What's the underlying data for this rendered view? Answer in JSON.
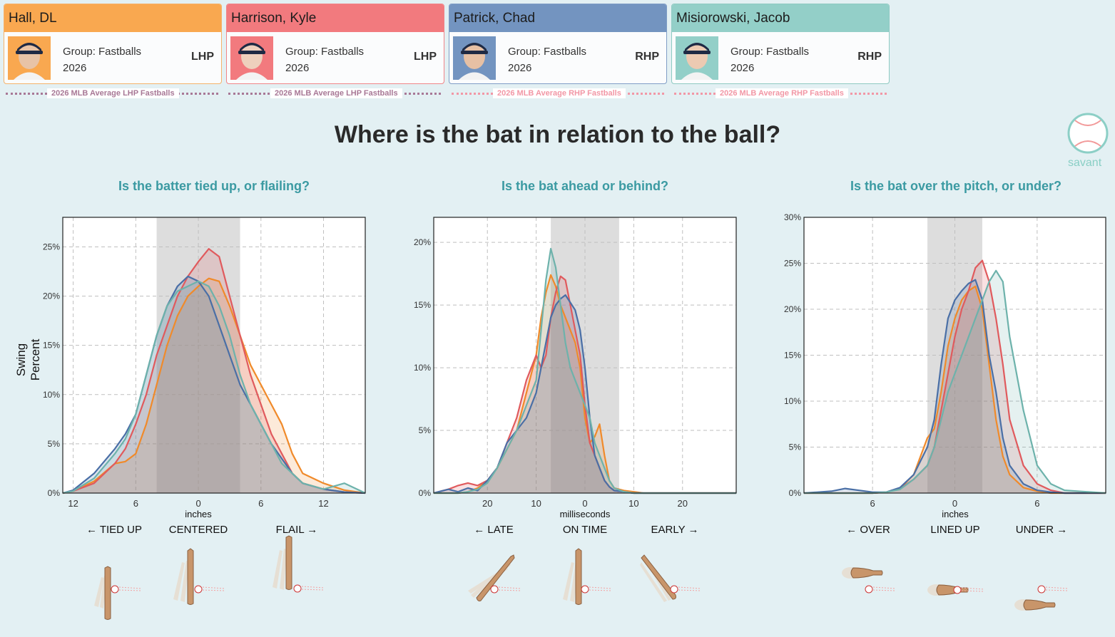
{
  "players": [
    {
      "name": "Hall, DL",
      "group": "Group: Fastballs",
      "year": "2026",
      "hand": "LHP",
      "color": "#f9a850",
      "border": "#f5b26a",
      "avg_label": "2026 MLB Average LHP Fastballs",
      "avg_color": "#a87896"
    },
    {
      "name": "Harrison, Kyle",
      "group": "Group: Fastballs",
      "year": "2026",
      "hand": "LHP",
      "color": "#f27a7e",
      "border": "#f08487",
      "avg_label": "2026 MLB Average LHP Fastballs",
      "avg_color": "#a87896"
    },
    {
      "name": "Patrick, Chad",
      "group": "Group: Fastballs",
      "year": "2026",
      "hand": "RHP",
      "color": "#7394c0",
      "border": "#7f9dc6",
      "avg_label": "2026 MLB Average RHP Fastballs",
      "avg_color": "#f297a5"
    },
    {
      "name": "Misiorowski, Jacob",
      "group": "Group: Fastballs",
      "year": "2026",
      "hand": "RHP",
      "color": "#93cfc8",
      "border": "#8ecac2",
      "avg_label": "2026 MLB Average RHP Fastballs",
      "avg_color": "#f297a5"
    }
  ],
  "title": "Where is the bat in relation to the ball?",
  "savant": "savant",
  "ylabel": "Swing Percent",
  "charts": [
    {
      "subtitle": "Is the batter tied up, or flailing?",
      "xunit": "inches",
      "zones": [
        "← TIED UP",
        "CENTERED",
        "FLAIL →"
      ]
    },
    {
      "subtitle": "Is the bat ahead or behind?",
      "xunit": "milliseconds",
      "zones": [
        "← LATE",
        "ON TIME",
        "EARLY →"
      ]
    },
    {
      "subtitle": "Is the bat over the pitch, or under?",
      "xunit": "inches",
      "zones": [
        "← OVER",
        "LINED UP",
        "UNDER →"
      ]
    }
  ],
  "chart_data": [
    {
      "type": "area",
      "title": "Is the batter tied up, or flailing?",
      "xlabel": "inches",
      "ylabel": "Swing Percent",
      "xlim": [
        -13,
        16
      ],
      "ylim": [
        0,
        28
      ],
      "xticks": [
        -12,
        -6,
        0,
        6,
        12
      ],
      "xtick_labels": [
        "12",
        "6",
        "0",
        "6",
        "12"
      ],
      "yticks": [
        0,
        5,
        10,
        15,
        20,
        25
      ],
      "ytick_labels": [
        "0%",
        "5%",
        "10%",
        "15%",
        "20%",
        "25%"
      ],
      "shaded_band": [
        -4,
        4
      ],
      "x": [
        -13,
        -12,
        -10,
        -8,
        -7,
        -6,
        -5,
        -4,
        -3,
        -2,
        -1,
        0,
        1,
        2,
        3,
        4,
        5,
        6,
        7,
        8,
        9,
        10,
        12,
        14,
        16
      ],
      "series": [
        {
          "name": "Hall, DL",
          "color": "#f08a2a",
          "values": [
            0,
            0.2,
            1.2,
            3,
            3.2,
            4,
            7,
            11,
            15,
            18,
            20,
            21,
            21.8,
            21.5,
            19,
            16,
            13,
            11,
            9,
            7,
            4,
            2,
            1,
            0.3,
            0
          ]
        },
        {
          "name": "Harrison, Kyle",
          "color": "#e05a5d",
          "values": [
            0,
            0.2,
            1,
            3,
            4.5,
            7,
            10,
            14,
            17,
            20,
            22,
            23.5,
            24.8,
            24,
            20,
            16,
            12,
            9,
            6,
            4,
            2,
            1,
            0.4,
            0.1,
            0
          ]
        },
        {
          "name": "Patrick, Chad",
          "color": "#4a6fa6",
          "values": [
            0,
            0.3,
            2,
            4.5,
            6,
            8,
            12,
            16,
            19,
            21,
            22,
            21.5,
            20,
            17,
            14,
            11,
            9,
            7,
            5,
            3.5,
            2,
            1,
            0.4,
            0.1,
            0
          ]
        },
        {
          "name": "Misiorowski, Jacob",
          "color": "#6db2ab",
          "values": [
            0,
            0.2,
            1.5,
            4,
            5.5,
            8,
            12,
            16,
            19,
            20.5,
            21,
            21.5,
            21,
            19,
            16,
            12,
            9,
            7,
            5,
            3,
            2,
            1,
            0.4,
            1,
            0
          ]
        }
      ]
    },
    {
      "type": "area",
      "title": "Is the bat ahead or behind?",
      "xlabel": "milliseconds",
      "xlim": [
        31,
        -31
      ],
      "ylim": [
        0,
        22
      ],
      "xticks": [
        20,
        10,
        0,
        -10,
        -20
      ],
      "xtick_labels": [
        "20",
        "10",
        "0",
        "10",
        "20"
      ],
      "yticks": [
        0,
        5,
        10,
        15,
        20
      ],
      "ytick_labels": [
        "0%",
        "5%",
        "10%",
        "15%",
        "20%"
      ],
      "shaded_band": [
        7,
        -7
      ],
      "x": [
        31,
        28,
        26,
        24,
        22,
        20,
        18,
        16,
        14,
        12,
        10,
        9,
        8,
        7,
        6,
        5,
        4,
        3,
        2,
        1,
        0,
        -1,
        -2,
        -3,
        -4,
        -5,
        -6,
        -8,
        -10,
        -12,
        -16,
        -20,
        -31
      ],
      "series": [
        {
          "name": "Hall, DL",
          "color": "#f08a2a",
          "values": [
            0,
            0,
            0,
            0.1,
            0.4,
            1,
            2,
            3.5,
            5,
            8,
            11,
            14,
            16,
            17.4,
            16.5,
            15,
            14,
            13,
            12,
            10,
            6,
            4,
            4.5,
            5.5,
            3,
            1,
            0.4,
            0.2,
            0.1,
            0,
            0,
            0,
            0
          ]
        },
        {
          "name": "Harrison, Kyle",
          "color": "#e05a5d",
          "values": [
            0,
            0.3,
            0.6,
            0.8,
            0.6,
            1,
            2,
            4,
            6,
            9,
            11,
            10,
            11,
            14,
            16,
            17.3,
            17,
            15,
            13,
            11,
            7,
            4,
            3,
            2,
            1,
            0.5,
            0.2,
            0.1,
            0,
            0,
            0,
            0,
            0
          ]
        },
        {
          "name": "Patrick, Chad",
          "color": "#4a6fa6",
          "values": [
            0,
            0.3,
            0.1,
            0.4,
            0.2,
            1,
            2,
            4,
            5,
            6,
            8,
            10,
            12,
            14,
            15,
            15.5,
            15.8,
            15.2,
            14.6,
            13,
            10,
            6,
            3,
            2,
            1,
            0.5,
            0.2,
            0.1,
            0,
            0,
            0,
            0,
            0
          ]
        },
        {
          "name": "Misiorowski, Jacob",
          "color": "#6db2ab",
          "values": [
            0,
            0,
            0,
            0.1,
            0.3,
            0.8,
            2,
            3.5,
            5,
            7,
            9,
            13,
            17,
            19.5,
            18,
            15,
            12,
            10,
            9,
            8,
            7,
            6,
            4,
            3,
            2,
            1,
            0.4,
            0.1,
            0,
            0,
            0,
            0,
            0
          ]
        }
      ]
    },
    {
      "type": "area",
      "title": "Is the bat over the pitch, or under?",
      "xlabel": "inches",
      "xlim": [
        -11,
        11
      ],
      "ylim": [
        0,
        30
      ],
      "xticks": [
        -6,
        0,
        6
      ],
      "xtick_labels": [
        "6",
        "0",
        "6"
      ],
      "yticks": [
        0,
        5,
        10,
        15,
        20,
        25,
        30
      ],
      "ytick_labels": [
        "0%",
        "5%",
        "10%",
        "15%",
        "20%",
        "25%",
        "30%"
      ],
      "shaded_band": [
        -2,
        2
      ],
      "x": [
        -11,
        -9,
        -8,
        -6,
        -5,
        -4,
        -3,
        -2,
        -1.5,
        -1,
        -0.5,
        0,
        0.5,
        1,
        1.5,
        2,
        2.5,
        3,
        3.5,
        4,
        5,
        6,
        7,
        8,
        11
      ],
      "series": [
        {
          "name": "Hall, DL",
          "color": "#f08a2a",
          "values": [
            0,
            0,
            0,
            0,
            0.1,
            0.5,
            2,
            6,
            7,
            11,
            16,
            19,
            21,
            22,
            22.5,
            20,
            14,
            8,
            4,
            2,
            0.6,
            0.2,
            0,
            0,
            0
          ]
        },
        {
          "name": "Harrison, Kyle",
          "color": "#e05a5d",
          "values": [
            0,
            0,
            0,
            0,
            0.1,
            0.5,
            1.5,
            3,
            5,
            9,
            13,
            17,
            20,
            22,
            24.5,
            25.3,
            23,
            19,
            14,
            8,
            3,
            1,
            0.3,
            0,
            0
          ]
        },
        {
          "name": "Patrick, Chad",
          "color": "#4a6fa6",
          "values": [
            0,
            0.2,
            0.5,
            0.1,
            0.1,
            0.6,
            2,
            5,
            8,
            14,
            19,
            21,
            22,
            22.8,
            23.2,
            21,
            15,
            11,
            6,
            3,
            1,
            0.3,
            0.1,
            0,
            0
          ]
        },
        {
          "name": "Misiorowski, Jacob",
          "color": "#6db2ab",
          "values": [
            0,
            0,
            0,
            0,
            0.1,
            0.4,
            1.5,
            3,
            5,
            8,
            11,
            13,
            15,
            17,
            19,
            21,
            23,
            24.2,
            23,
            17,
            9,
            3,
            1,
            0.3,
            0
          ]
        }
      ]
    }
  ]
}
